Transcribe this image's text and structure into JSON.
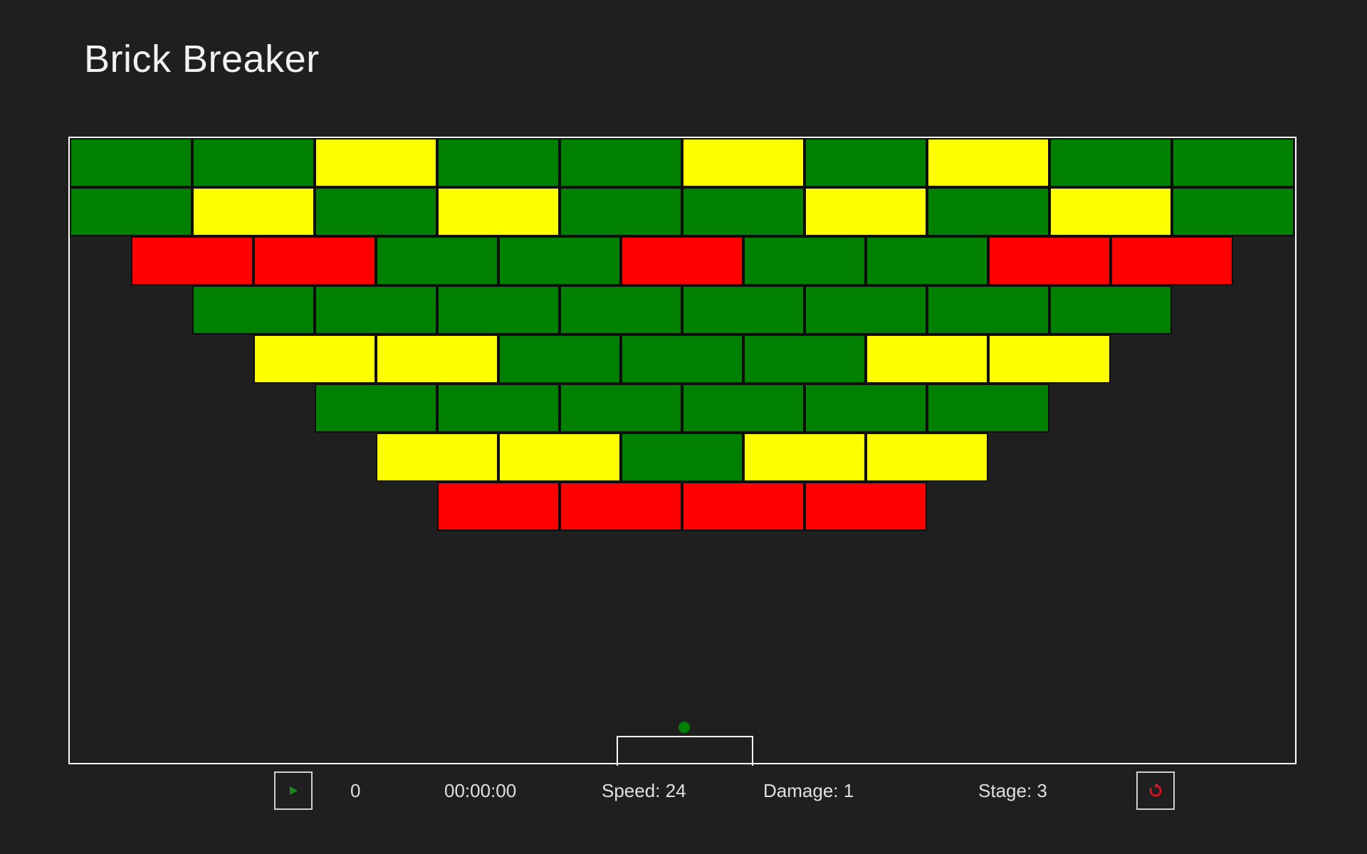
{
  "app": {
    "title": "Brick Breaker"
  },
  "colors": {
    "background": "#1f1f1f",
    "board_border": "#ffffff",
    "brick_green": "#008000",
    "brick_yellow": "#ffff00",
    "brick_red": "#ff0000",
    "ball": "#008000",
    "play_icon": "#1a8a1a",
    "restart_icon": "#e81123"
  },
  "bricks": {
    "rows": [
      [
        "G",
        "G",
        "Y",
        "G",
        "G",
        "Y",
        "G",
        "Y",
        "G",
        "G"
      ],
      [
        "G",
        "Y",
        "G",
        "Y",
        "G",
        "G",
        "Y",
        "G",
        "Y",
        "G"
      ],
      [
        "R",
        "R",
        "G",
        "G",
        "R",
        "G",
        "G",
        "R",
        "R"
      ],
      [
        "G",
        "G",
        "G",
        "G",
        "G",
        "G",
        "G",
        "G"
      ],
      [
        "Y",
        "Y",
        "G",
        "G",
        "G",
        "Y",
        "Y"
      ],
      [
        "G",
        "G",
        "G",
        "G",
        "G",
        "G"
      ],
      [
        "Y",
        "Y",
        "G",
        "Y",
        "Y"
      ],
      [
        "R",
        "R",
        "R",
        "R"
      ]
    ]
  },
  "status": {
    "score": "0",
    "timer": "00:00:00",
    "speed": "Speed: 24",
    "damage": "Damage: 1",
    "stage": "Stage: 3"
  },
  "controls": {
    "play_icon": "play-icon",
    "restart_icon": "restart-icon"
  }
}
